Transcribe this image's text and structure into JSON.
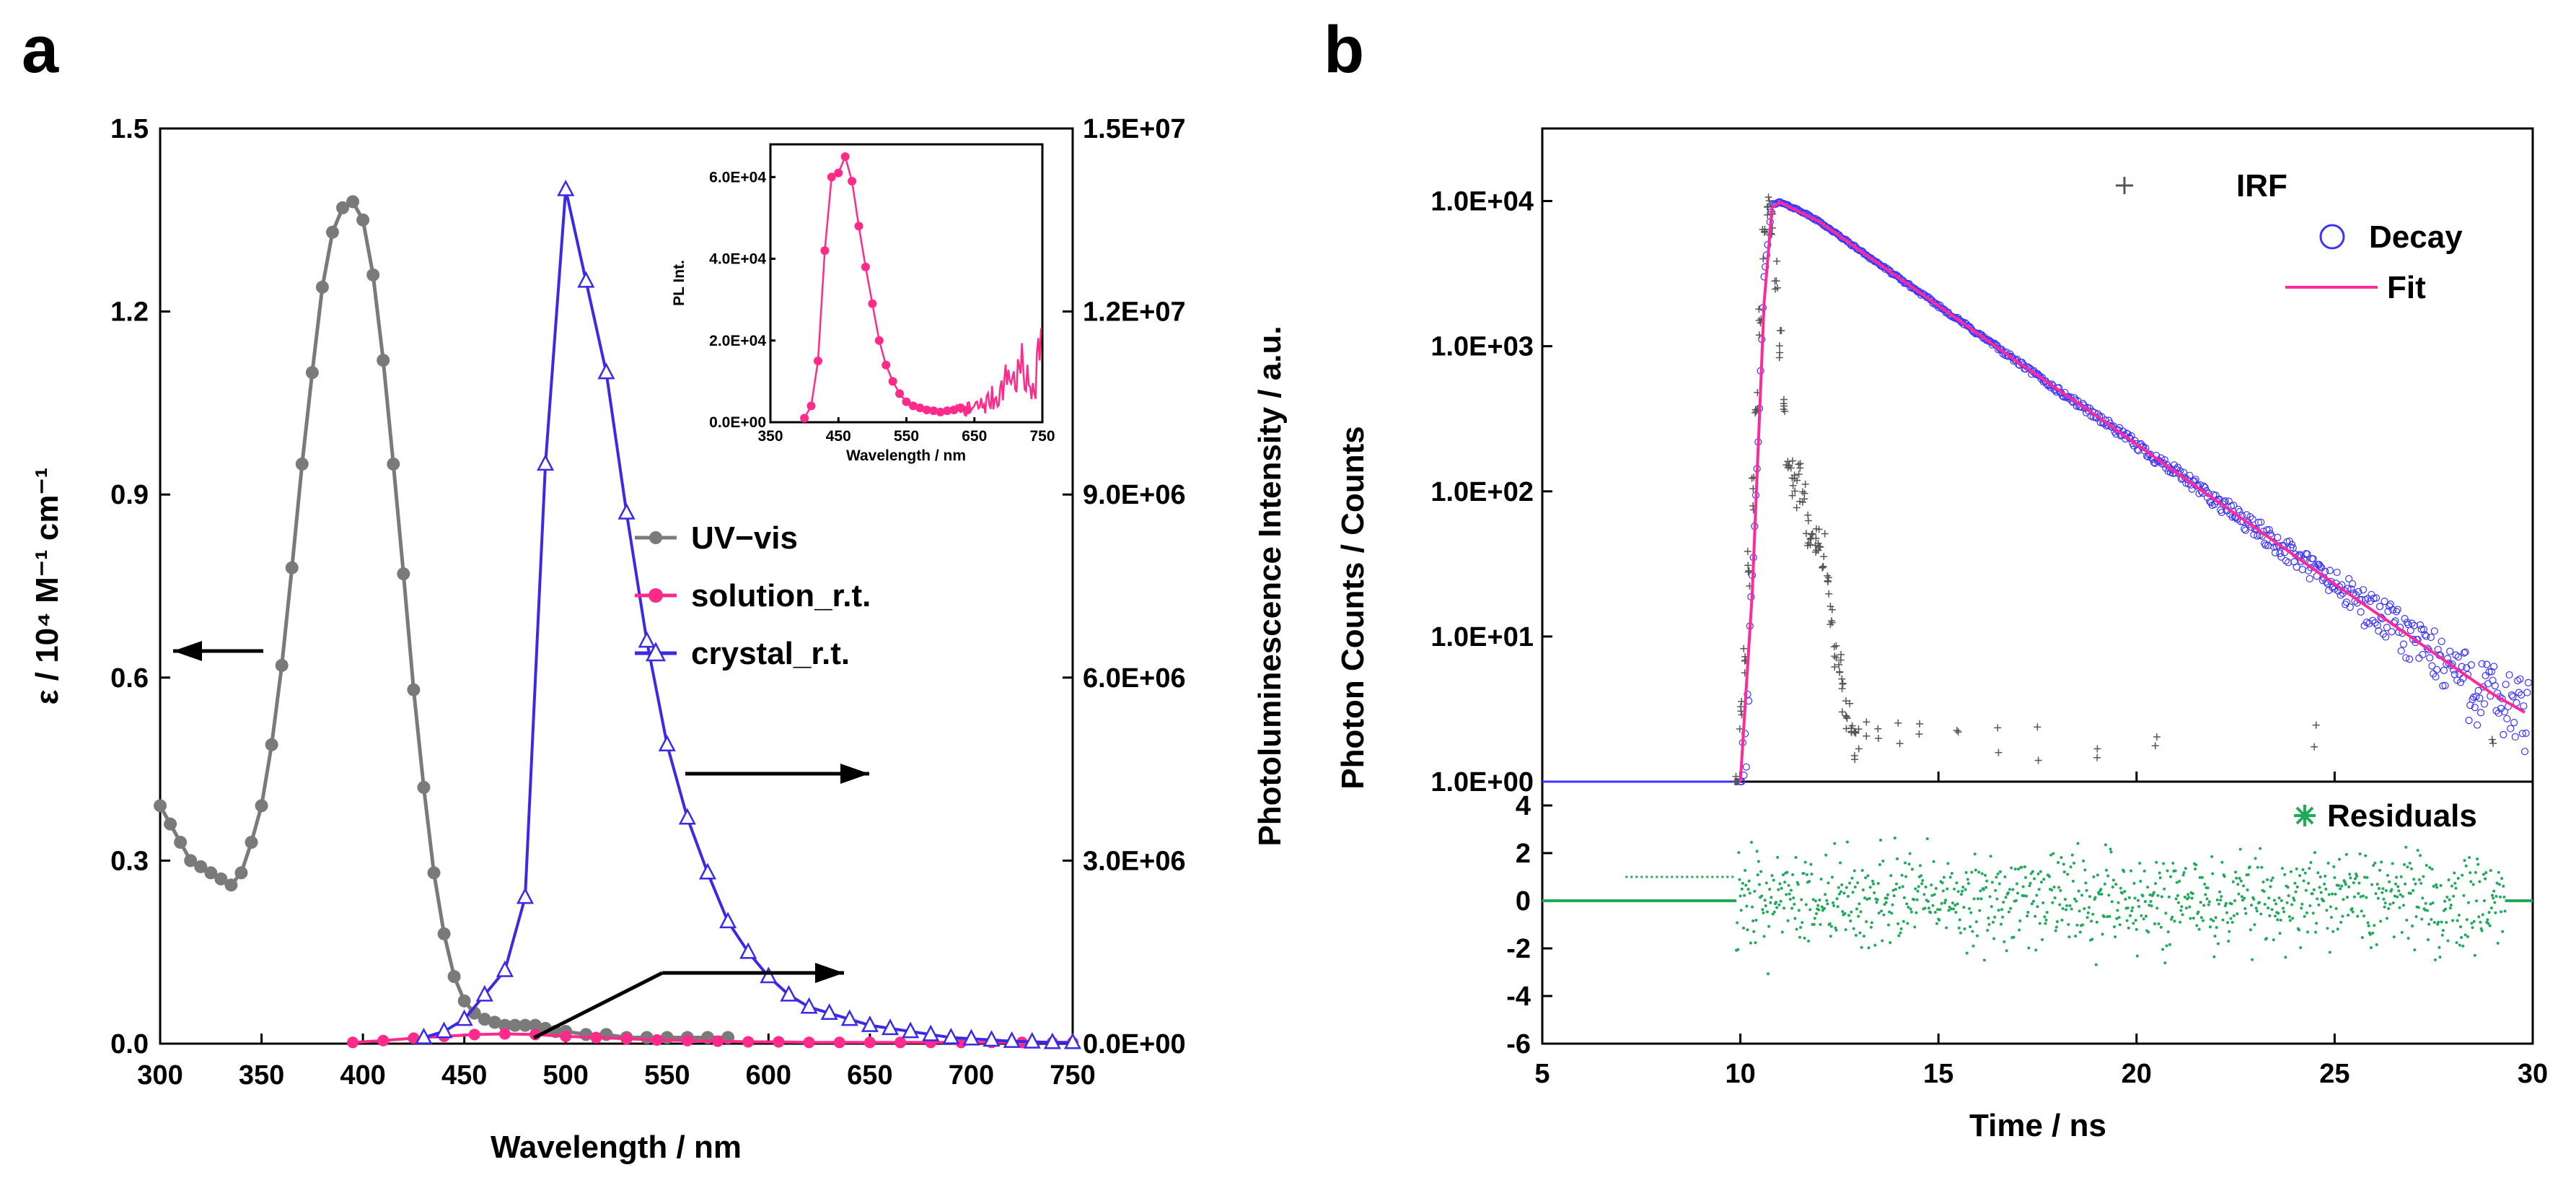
{
  "colors": {
    "uvvis": "#7a7a7a",
    "solution": "#ff2a8a",
    "crystal": "#3a2ae8",
    "irf": "#555555",
    "decay": "#3a32ff",
    "fit": "#ff2a9a",
    "residuals": "#1faa5a",
    "arrow": "#000000"
  },
  "chart_data": [
    {
      "panel": "a",
      "type": "line",
      "title": "",
      "xlabel": "Wavelength / nm",
      "ylabel_left": "ε / 10⁴ M⁻¹ cm⁻¹",
      "ylabel_right": "Photoluminescence Intensity / a.u.",
      "xlim": [
        300,
        750
      ],
      "ylim_left": [
        0,
        1.5
      ],
      "ylim_right": [
        0,
        15000000
      ],
      "xticks": [
        "300",
        "350",
        "400",
        "450",
        "500",
        "550",
        "600",
        "650",
        "700",
        "750"
      ],
      "yticks_left": [
        "0.0",
        "0.3",
        "0.6",
        "0.9",
        "1.2",
        "1.5"
      ],
      "yticks_right": [
        "0.0E+00",
        "3.0E+06",
        "6.0E+06",
        "9.0E+06",
        "1.2E+07",
        "1.5E+07"
      ],
      "legend_position": "center-right",
      "series": [
        {
          "name": "UV−vis",
          "axis": "left",
          "marker": "circle",
          "x": [
            300,
            305,
            310,
            315,
            320,
            325,
            330,
            335,
            340,
            345,
            350,
            355,
            360,
            365,
            370,
            375,
            380,
            385,
            390,
            395,
            400,
            405,
            410,
            415,
            420,
            425,
            430,
            435,
            440,
            445,
            450,
            455,
            460,
            465,
            470,
            475,
            480,
            485,
            490,
            495,
            500,
            510,
            520,
            530,
            540,
            550,
            560,
            570,
            580
          ],
          "y": [
            0.39,
            0.36,
            0.33,
            0.3,
            0.29,
            0.28,
            0.27,
            0.26,
            0.28,
            0.33,
            0.39,
            0.49,
            0.62,
            0.78,
            0.95,
            1.1,
            1.24,
            1.33,
            1.37,
            1.38,
            1.35,
            1.26,
            1.12,
            0.95,
            0.77,
            0.58,
            0.42,
            0.28,
            0.18,
            0.11,
            0.07,
            0.05,
            0.04,
            0.035,
            0.03,
            0.03,
            0.03,
            0.03,
            0.025,
            0.02,
            0.02,
            0.015,
            0.015,
            0.01,
            0.01,
            0.01,
            0.01,
            0.01,
            0.01
          ]
        },
        {
          "name": "solution_r.t.",
          "axis": "right",
          "marker": "circle",
          "x": [
            395,
            410,
            425,
            440,
            455,
            470,
            485,
            500,
            515,
            530,
            545,
            560,
            575,
            590,
            605,
            620,
            635,
            650,
            665,
            680,
            695,
            710,
            725,
            740,
            750
          ],
          "y": [
            20000,
            50000,
            90000,
            120000,
            150000,
            160000,
            150000,
            120000,
            100000,
            80000,
            60000,
            50000,
            40000,
            30000,
            30000,
            20000,
            20000,
            20000,
            20000,
            20000,
            20000,
            20000,
            20000,
            20000,
            20000
          ]
        },
        {
          "name": "crystal_r.t.",
          "axis": "right",
          "marker": "triangle",
          "x": [
            430,
            440,
            450,
            460,
            470,
            480,
            490,
            500,
            510,
            520,
            530,
            540,
            550,
            560,
            570,
            580,
            590,
            600,
            610,
            620,
            630,
            640,
            650,
            660,
            670,
            680,
            690,
            700,
            710,
            720,
            730,
            740,
            750
          ],
          "y": [
            100000,
            200000,
            400000,
            800000,
            1200000,
            2400000,
            9500000,
            14000000,
            12500000,
            11000000,
            8700000,
            6600000,
            4900000,
            3700000,
            2800000,
            2000000,
            1500000,
            1100000,
            800000,
            600000,
            500000,
            400000,
            300000,
            250000,
            200000,
            150000,
            100000,
            80000,
            60000,
            40000,
            30000,
            20000,
            20000
          ]
        }
      ],
      "inset": {
        "type": "line",
        "xlabel": "Wavelength / nm",
        "ylabel": "PL Int.",
        "xlim": [
          350,
          750
        ],
        "ylim": [
          0,
          68000
        ],
        "xticks": [
          "350",
          "450",
          "550",
          "650",
          "750"
        ],
        "yticks": [
          "0.0E+00",
          "2.0E+04",
          "4.0E+04",
          "6.0E+04"
        ],
        "series": [
          {
            "name": "solution_r.t.",
            "x": [
              400,
              410,
              420,
              430,
              440,
              450,
              460,
              470,
              480,
              490,
              500,
              510,
              520,
              530,
              540,
              550,
              560,
              570,
              580,
              590,
              600,
              610,
              620,
              630,
              640,
              650,
              660,
              670,
              680,
              690,
              700,
              710,
              720,
              730,
              740,
              750
            ],
            "y": [
              1000,
              4000,
              15000,
              42000,
              60000,
              61000,
              65000,
              59000,
              48000,
              38000,
              29000,
              20000,
              14000,
              10000,
              7000,
              5000,
              4000,
              3500,
              3000,
              2800,
              2500,
              2800,
              3000,
              3500,
              3000,
              3500,
              4000,
              5000,
              6000,
              8000,
              12000,
              10000,
              14000,
              8000,
              12000,
              25000
            ]
          }
        ]
      },
      "annotations": [
        "arrow-left-to-left-axis",
        "arrow-right-to-right-axis",
        "arrow-to-right-axis-from-baseline"
      ]
    },
    {
      "panel": "b",
      "type": "scatter",
      "title": "",
      "xlabel": "Time / ns",
      "ylabel": "Photon Counts / Counts",
      "xlim": [
        5,
        30
      ],
      "xticks": [
        "5",
        "10",
        "15",
        "20",
        "25",
        "30"
      ],
      "top": {
        "yscale": "log",
        "ylim": [
          1,
          31622
        ],
        "yticks": [
          "1.0E+00",
          "1.0E+01",
          "1.0E+02",
          "1.0E+03",
          "1.0E+04"
        ],
        "legend_position": "top-right",
        "series": [
          {
            "name": "IRF",
            "marker": "plus",
            "x": [
              9.9,
              10.0,
              10.1,
              10.2,
              10.3,
              10.4,
              10.5,
              10.6,
              10.7,
              10.8,
              10.9,
              11.0,
              11.1,
              11.2,
              11.3,
              11.4,
              11.5,
              11.6,
              11.7,
              11.8,
              11.9,
              12.0,
              12.1,
              12.2,
              12.3,
              12.4,
              12.5,
              12.6,
              12.7,
              12.8,
              12.9,
              13.0,
              13.2,
              13.5,
              14.0,
              14.5,
              15.5,
              16.5,
              17.5,
              19.0,
              20.5,
              24.5,
              29.0
            ],
            "y": [
              1,
              3,
              8,
              30,
              100,
              400,
              1500,
              5000,
              9000,
              7000,
              3000,
              1000,
              400,
              200,
              130,
              100,
              120,
              100,
              60,
              40,
              45,
              55,
              40,
              25,
              15,
              8,
              6,
              4,
              3,
              3,
              2,
              2,
              2,
              2,
              2,
              2,
              2,
              2,
              2,
              2,
              2,
              2,
              2
            ]
          },
          {
            "name": "Decay",
            "marker": "circle",
            "x": [
              10.0,
              10.2,
              10.4,
              10.6,
              10.8,
              11.0,
              11.5,
              12.0,
              13.0,
              14.0,
              15.0,
              16.0,
              17.0,
              18.0,
              19.0,
              20.0,
              21.0,
              22.0,
              23.0,
              24.0,
              25.0,
              26.0,
              27.0,
              28.0,
              29.0,
              29.8
            ],
            "y": [
              1,
              5,
              100,
              3000,
              9500,
              9800,
              8600,
              7200,
              4600,
              2950,
              1900,
              1220,
              780,
              500,
              330,
              210,
              135,
              87,
              56,
              36,
              23,
              15,
              9.6,
              6.2,
              4,
              3
            ]
          },
          {
            "name": "Fit",
            "marker": "line",
            "x": [
              10.0,
              10.3,
              10.6,
              10.8,
              11.0,
              12.0,
              13.0,
              15.0,
              17.0,
              19.0,
              21.0,
              23.0,
              25.0,
              27.0,
              29.0,
              29.8
            ],
            "y": [
              1,
              20,
              2000,
              9000,
              9800,
              7200,
              4600,
              1900,
              780,
              330,
              135,
              56,
              23,
              9.6,
              4,
              3
            ]
          }
        ]
      },
      "bottom": {
        "ylim": [
          -6,
          5
        ],
        "yticks": [
          "-6",
          "-4",
          "-2",
          "0",
          "2",
          "4"
        ],
        "legend_position": "top-right",
        "series": [
          {
            "name": "Residuals",
            "marker": "star",
            "x": [
              5,
              9.9,
              10,
              29.3,
              30
            ],
            "y": [
              0,
              0,
              0,
              0,
              0
            ]
          }
        ]
      }
    }
  ]
}
